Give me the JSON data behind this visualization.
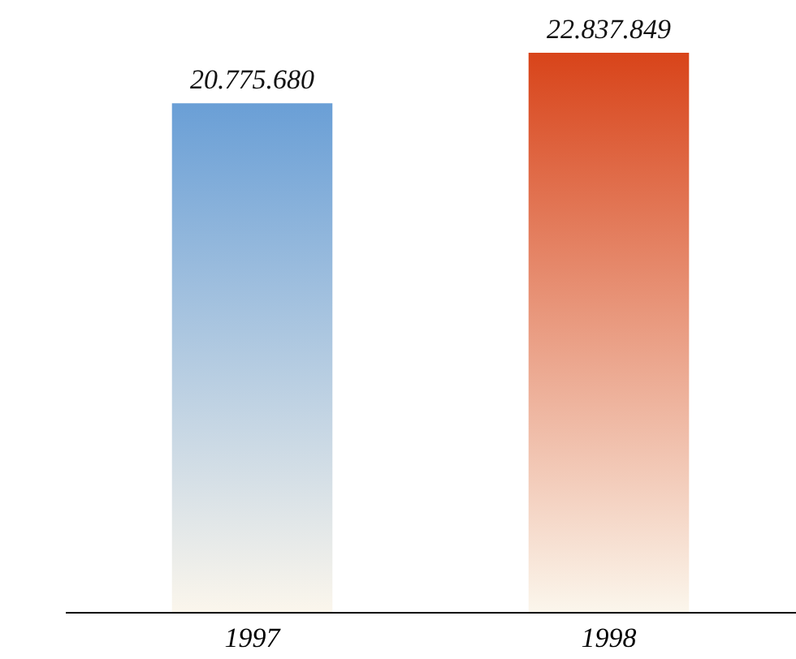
{
  "chart_data": {
    "type": "bar",
    "categories": [
      "1997",
      "1998"
    ],
    "values": [
      20775680,
      22837849
    ],
    "colors": [
      "#6a9fd6",
      "#d8441a"
    ],
    "value_labels": [
      "20.775.680",
      "22.837.849"
    ],
    "grid": false
  }
}
